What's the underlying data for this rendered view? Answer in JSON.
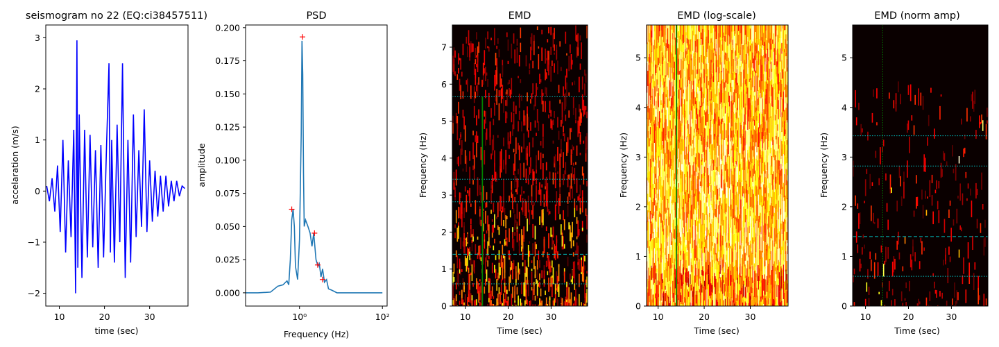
{
  "chart_data": [
    {
      "type": "line",
      "title": "seismogram no 22 (EQ:ci38457511)",
      "xlabel": "time (sec)",
      "ylabel": "accelaration (m/s)",
      "xlim": [
        7,
        38.5
      ],
      "ylim": [
        -2.25,
        3.25
      ],
      "xticks": [
        10,
        20,
        30
      ],
      "yticks": [
        -2,
        -1,
        0,
        1,
        2,
        3
      ],
      "colors": {
        "line": "#0000ff"
      },
      "series": [
        {
          "x": [
            7.2,
            7.8,
            8.4,
            9.0,
            9.6,
            10.2,
            10.8,
            11.4,
            12.0,
            12.6,
            13.2,
            13.6,
            13.9,
            14.1,
            14.4,
            15.0,
            15.6,
            16.2,
            16.8,
            17.4,
            18.0,
            18.6,
            19.2,
            19.8,
            20.4,
            21.0,
            21.3,
            21.6,
            22.2,
            22.8,
            23.4,
            24.0,
            24.6,
            25.2,
            25.8,
            26.4,
            27.0,
            27.6,
            28.2,
            28.8,
            29.4,
            30.0,
            30.6,
            31.2,
            31.8,
            32.4,
            33.0,
            33.6,
            34.2,
            34.8,
            35.4,
            36.0,
            36.6,
            37.2,
            37.8
          ],
          "y": [
            0.1,
            -0.2,
            0.25,
            -0.4,
            0.5,
            -0.8,
            1.0,
            -1.2,
            0.6,
            -0.9,
            1.2,
            -2.0,
            2.95,
            -1.5,
            1.5,
            -1.7,
            1.2,
            -1.3,
            1.1,
            -1.1,
            0.8,
            -1.5,
            0.9,
            -1.3,
            0.7,
            2.5,
            -1.2,
            1.0,
            -1.4,
            1.3,
            -1.0,
            2.5,
            -1.7,
            1.0,
            -1.4,
            1.5,
            -0.9,
            0.8,
            -0.7,
            1.6,
            -0.8,
            0.6,
            -0.6,
            0.4,
            -0.5,
            0.3,
            -0.4,
            0.3,
            -0.3,
            0.2,
            -0.2,
            0.2,
            -0.1,
            0.1,
            0.05
          ]
        }
      ]
    },
    {
      "type": "line",
      "title": "PSD",
      "xlabel": "Frequency (Hz)",
      "ylabel": "amplitude",
      "xscale": "log",
      "xlim": [
        0.05,
        130
      ],
      "ylim": [
        -0.01,
        0.202
      ],
      "xticks": [
        1,
        100
      ],
      "xtick_labels": [
        "10⁰",
        "10²"
      ],
      "yticks": [
        0.0,
        0.025,
        0.05,
        0.075,
        0.1,
        0.125,
        0.15,
        0.175,
        0.2
      ],
      "ytick_labels": [
        "0.000",
        "0.025",
        "0.050",
        "0.075",
        "0.100",
        "0.125",
        "0.150",
        "0.175",
        "0.200"
      ],
      "colors": {
        "line": "#1f77b4",
        "peaks": "#ff0000"
      },
      "series": [
        {
          "x": [
            0.05,
            0.1,
            0.2,
            0.3,
            0.4,
            0.5,
            0.55,
            0.6,
            0.65,
            0.7,
            0.75,
            0.8,
            0.9,
            1.0,
            1.1,
            1.15,
            1.2,
            1.25,
            1.3,
            1.4,
            1.6,
            1.8,
            2.0,
            2.2,
            2.5,
            2.8,
            3.0,
            3.3,
            3.6,
            4.0,
            4.5,
            5.0,
            6.0,
            8.0,
            10,
            20,
            50,
            100
          ],
          "y": [
            0.0,
            0.0,
            0.0005,
            0.005,
            0.006,
            0.009,
            0.006,
            0.025,
            0.055,
            0.063,
            0.05,
            0.02,
            0.01,
            0.04,
            0.12,
            0.19,
            0.165,
            0.09,
            0.05,
            0.055,
            0.05,
            0.045,
            0.035,
            0.045,
            0.025,
            0.02,
            0.022,
            0.012,
            0.018,
            0.008,
            0.01,
            0.003,
            0.002,
            0.0,
            0.0,
            0.0,
            0.0,
            0.0
          ]
        }
      ],
      "peaks": {
        "x": [
          0.65,
          1.18,
          2.3,
          2.75,
          3.6
        ],
        "y": [
          0.063,
          0.193,
          0.045,
          0.021,
          0.01
        ]
      }
    },
    {
      "type": "heatmap",
      "title": "EMD",
      "xlabel": "Time (sec)",
      "ylabel": "Frequency (Hz)",
      "xlim": [
        7,
        38.5
      ],
      "ylim": [
        0,
        7.6
      ],
      "xticks": [
        10,
        20,
        30
      ],
      "yticks": [
        0,
        1,
        2,
        3,
        4,
        5,
        6,
        7
      ],
      "colormap": "hot",
      "hlines": [
        0.6,
        1.4,
        2.82,
        3.43,
        5.66
      ],
      "hline_style": [
        "dotted",
        "dashed",
        "dotted",
        "dotted",
        "dotted"
      ],
      "vline": {
        "x": 14,
        "ymax": 5.66,
        "color": "#008000"
      },
      "colors": {
        "hline": "#00bfbf"
      }
    },
    {
      "type": "heatmap",
      "title": "EMD (log-scale)",
      "xlabel": "Time (sec)",
      "ylabel": "Frequency (Hz)",
      "xlim": [
        7.5,
        38.2
      ],
      "ylim": [
        0,
        5.66
      ],
      "xticks": [
        10,
        20,
        30
      ],
      "yticks": [
        0,
        1,
        2,
        3,
        4,
        5
      ],
      "colormap": "hot",
      "vline": {
        "x": 14,
        "color": "#008000"
      }
    },
    {
      "type": "heatmap",
      "title": "EMD (norm amp)",
      "xlabel": "Time (sec)",
      "ylabel": "Frequency (Hz)",
      "xlim": [
        7,
        38.5
      ],
      "ylim": [
        0,
        5.66
      ],
      "xticks": [
        10,
        20,
        30
      ],
      "yticks": [
        0,
        1,
        2,
        3,
        4,
        5
      ],
      "colormap": "hot",
      "hlines": [
        0.6,
        1.4,
        2.82,
        3.43
      ],
      "hline_style": [
        "dotted",
        "dashed",
        "dotted",
        "dotted"
      ],
      "vline": {
        "x": 14,
        "color": "#008000",
        "style": "dotted"
      },
      "colors": {
        "hline": "#00bfbf"
      }
    }
  ]
}
